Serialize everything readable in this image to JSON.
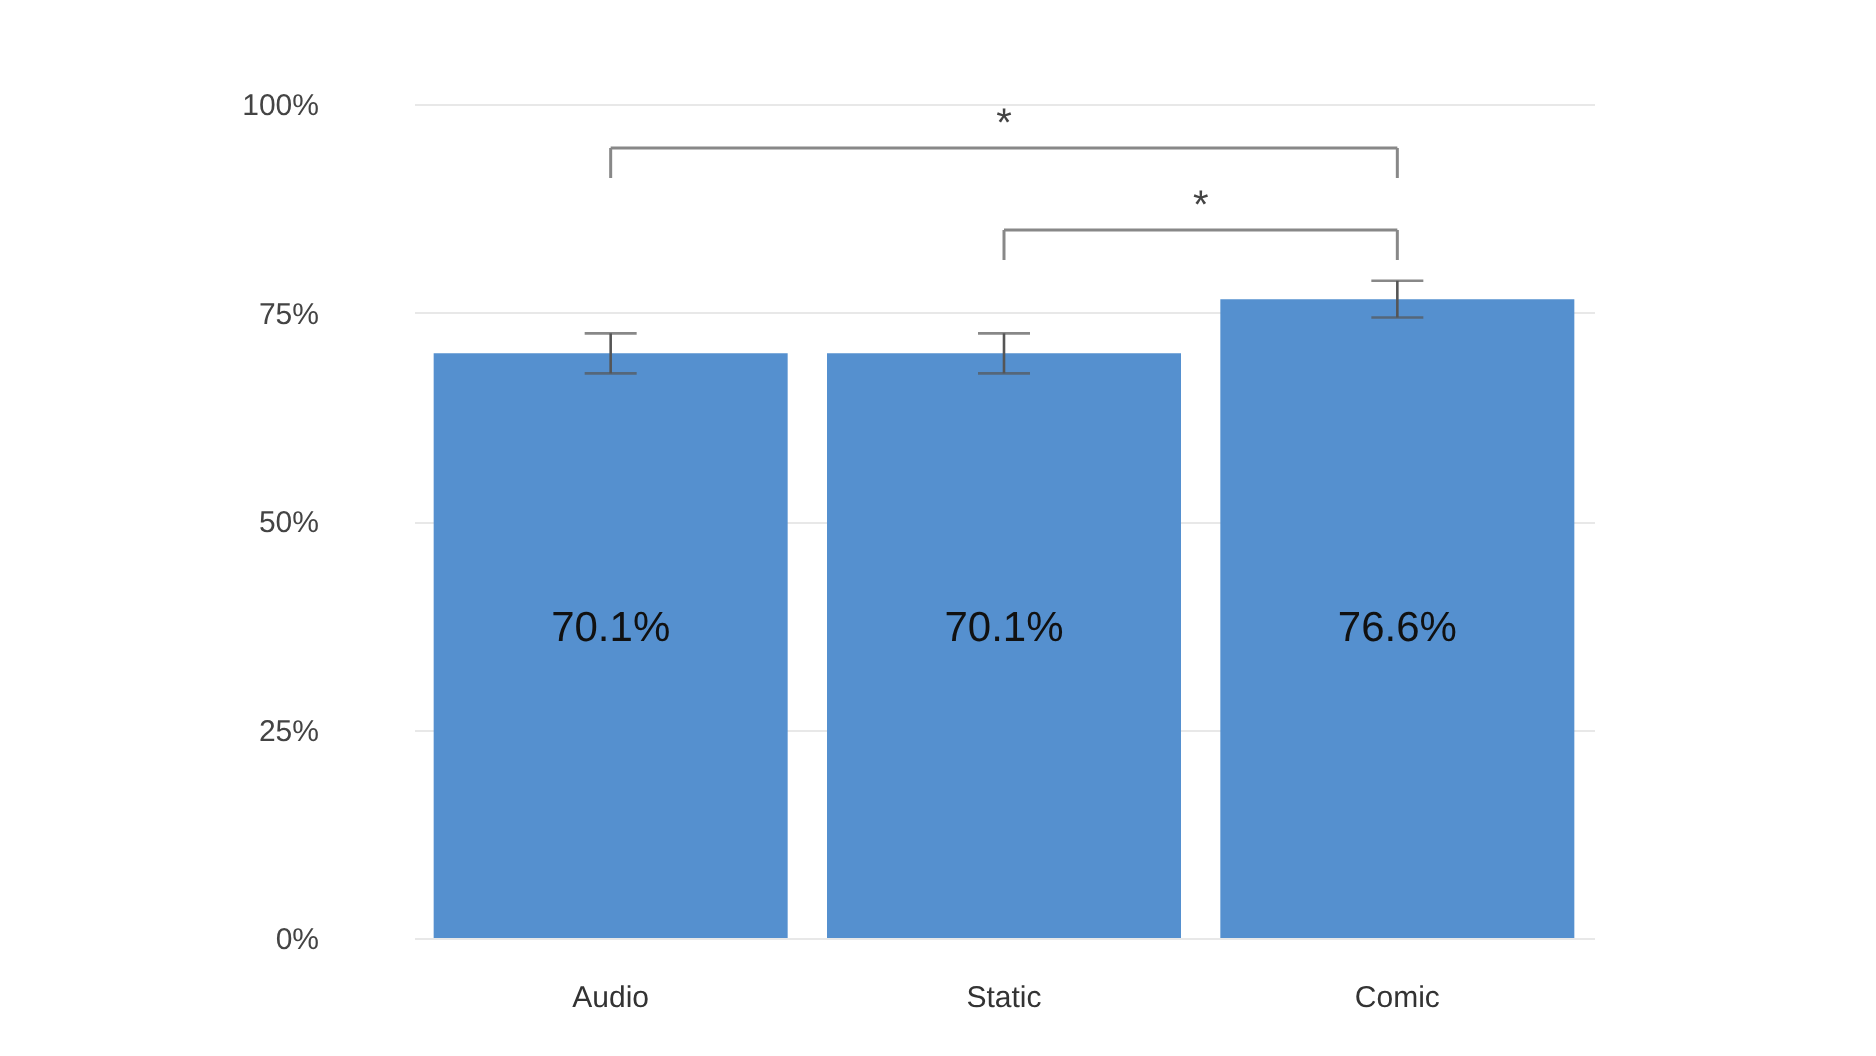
{
  "chart_data": {
    "type": "bar",
    "categories": [
      "Audio",
      "Static",
      "Comic"
    ],
    "values": [
      70.1,
      70.1,
      76.6
    ],
    "errors": [
      2.4,
      2.4,
      2.2
    ],
    "value_labels": [
      "70.1%",
      "70.1%",
      "76.6%"
    ],
    "color": "#5590cf",
    "ylim": [
      0,
      100
    ],
    "yticks": [
      {
        "value": 0,
        "label": "0%"
      },
      {
        "value": 25,
        "label": "25%"
      },
      {
        "value": 50,
        "label": "50%"
      },
      {
        "value": 75,
        "label": "75%"
      },
      {
        "value": 100,
        "label": "100%"
      }
    ],
    "grid": "y",
    "annotations": [
      "*",
      "*"
    ]
  }
}
